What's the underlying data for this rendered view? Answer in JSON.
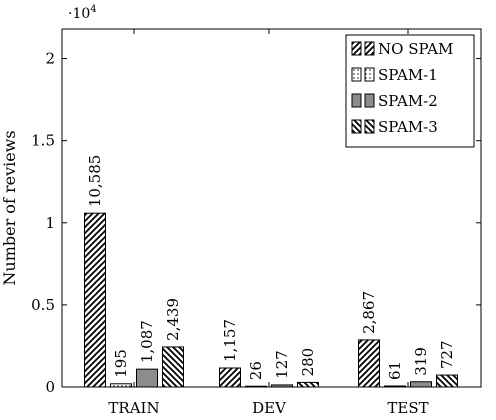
{
  "chart_data": {
    "type": "bar",
    "title": "",
    "xlabel": "",
    "ylabel": "Number of reviews",
    "scale_label": "·10",
    "scale_exponent": "4",
    "ylim": [
      0,
      21800
    ],
    "yticks": [
      0,
      5000,
      10000,
      15000,
      20000
    ],
    "ytick_labels": [
      "0",
      "0.5",
      "1",
      "1.5",
      "2"
    ],
    "categories": [
      "TRAIN",
      "DEV",
      "TEST"
    ],
    "legend_position": "top-right",
    "grid": false,
    "series": [
      {
        "name": "NO SPAM",
        "pattern": "hatch-ne",
        "values": [
          10585,
          1157,
          2867
        ],
        "labels": [
          "10,585",
          "1,157",
          "2,867"
        ]
      },
      {
        "name": "SPAM-1",
        "pattern": "dots",
        "values": [
          195,
          26,
          61
        ],
        "labels": [
          "195",
          "26",
          "61"
        ]
      },
      {
        "name": "SPAM-2",
        "pattern": "solid",
        "fill": "#8c8c8c",
        "values": [
          1087,
          127,
          319
        ],
        "labels": [
          "1,087",
          "127",
          "319"
        ]
      },
      {
        "name": "SPAM-3",
        "pattern": "hatch-nw",
        "values": [
          2439,
          280,
          727
        ],
        "labels": [
          "2,439",
          "280",
          "727"
        ]
      }
    ]
  }
}
